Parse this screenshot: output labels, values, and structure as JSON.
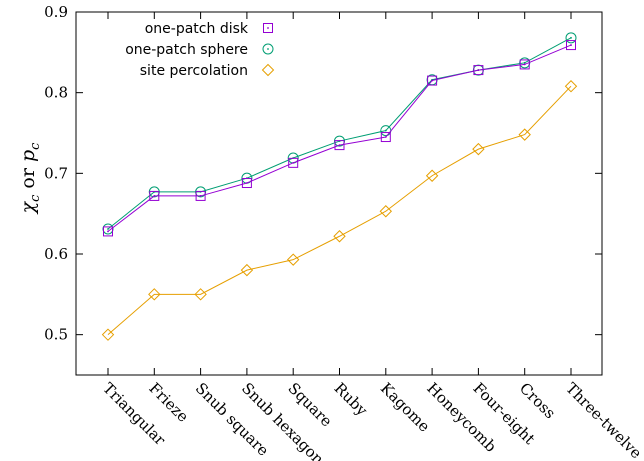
{
  "chart_data": {
    "type": "line",
    "ylabel": {
      "symbol1": "χ",
      "sub1": "c",
      "conj": " or ",
      "symbol2": "p",
      "sub2": "c"
    },
    "categories": [
      "Triangular",
      "Frieze",
      "Snub square",
      "Snub hexagonal",
      "Square",
      "Ruby",
      "Kagome",
      "Honeycomb",
      "Four-eight",
      "Cross",
      "Three-twelve"
    ],
    "ylim": [
      0.45,
      0.9
    ],
    "yticks": [
      {
        "value": 0.5,
        "label": "0.5"
      },
      {
        "value": 0.6,
        "label": "0.6"
      },
      {
        "value": 0.7,
        "label": "0.7"
      },
      {
        "value": 0.8,
        "label": "0.8"
      },
      {
        "value": 0.9,
        "label": "0.9"
      }
    ],
    "legend_position": "top-left",
    "grid": false,
    "series": [
      {
        "name": "one-patch disk",
        "color": "#9400d3",
        "marker": "square",
        "values": [
          0.628,
          0.672,
          0.672,
          0.688,
          0.713,
          0.735,
          0.745,
          0.815,
          0.828,
          0.835,
          0.859
        ]
      },
      {
        "name": "one-patch sphere",
        "color": "#009e73",
        "marker": "circle",
        "values": [
          0.631,
          0.677,
          0.677,
          0.694,
          0.719,
          0.74,
          0.753,
          0.816,
          0.828,
          0.837,
          0.868
        ]
      },
      {
        "name": "site percolation",
        "color": "#e69f00",
        "marker": "diamond",
        "values": [
          0.5,
          0.55,
          0.55,
          0.58,
          0.593,
          0.622,
          0.653,
          0.697,
          0.73,
          0.748,
          0.808
        ]
      }
    ]
  }
}
